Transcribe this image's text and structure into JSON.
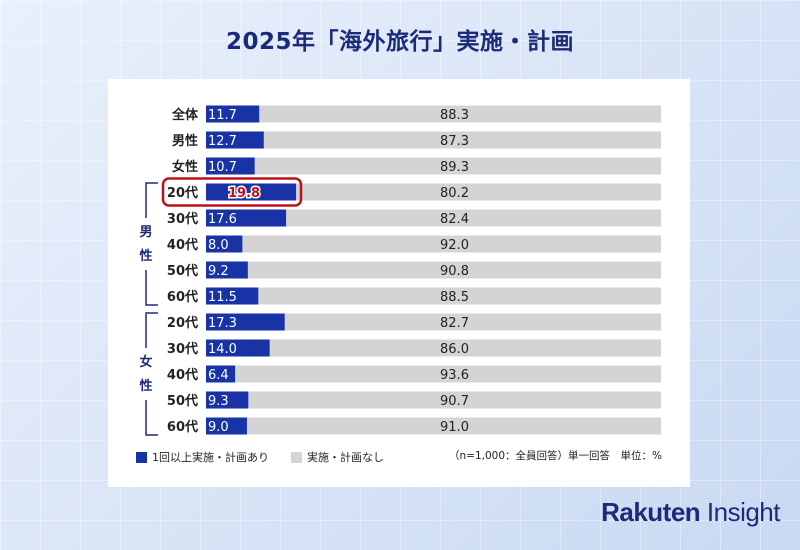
{
  "title": "2025年「海外旅行」実施・計画",
  "brand": {
    "name_bold": "Rakuten",
    "name_light": "Insight"
  },
  "colors": {
    "accent": "#1733a6",
    "gray": "#d4d4d4",
    "highlight": "#c0101a"
  },
  "legend": {
    "series1": "1回以上実施・計画あり",
    "series2": "実施・計画なし"
  },
  "footnote": "（n=1,000：全員回答）単一回答　単位：%",
  "groups": [
    {
      "label": "男性",
      "from": 3,
      "to": 7
    },
    {
      "label": "女性",
      "from": 8,
      "to": 12
    }
  ],
  "chart_data": {
    "type": "bar",
    "orientation": "horizontal",
    "stacked": true,
    "categories": [
      "全体",
      "男性",
      "女性",
      "20代",
      "30代",
      "40代",
      "50代",
      "60代",
      "20代",
      "30代",
      "40代",
      "50代",
      "60代"
    ],
    "series": [
      {
        "name": "1回以上実施・計画あり",
        "values": [
          11.7,
          12.7,
          10.7,
          19.8,
          17.6,
          8.0,
          9.2,
          11.5,
          17.3,
          14.0,
          6.4,
          9.3,
          9.0
        ]
      },
      {
        "name": "実施・計画なし",
        "values": [
          88.3,
          87.3,
          89.3,
          80.2,
          82.4,
          92.0,
          90.8,
          88.5,
          82.7,
          86.0,
          93.6,
          90.7,
          91.0
        ]
      }
    ],
    "xlim": [
      0,
      100
    ],
    "highlight_index": 3
  }
}
